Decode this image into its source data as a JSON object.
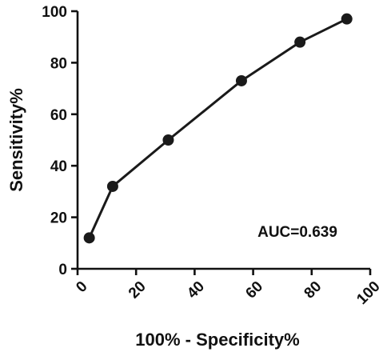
{
  "chart_data": {
    "type": "line",
    "xlabel": "100% - Specificity%",
    "ylabel": "Sensitivity%",
    "xlim": [
      0,
      100
    ],
    "ylim": [
      0,
      100
    ],
    "xticks": [
      "0",
      "20",
      "40",
      "60",
      "80",
      "100"
    ],
    "yticks": [
      "0",
      "20",
      "40",
      "60",
      "80",
      "100"
    ],
    "grid": false,
    "series": [
      {
        "x": [
          4,
          12,
          31,
          56,
          76,
          92
        ],
        "y": [
          12,
          32,
          50,
          73,
          88,
          97
        ],
        "color": "#1a1a1a",
        "marker": "circle"
      }
    ],
    "annotation": "AUC=0.639"
  }
}
